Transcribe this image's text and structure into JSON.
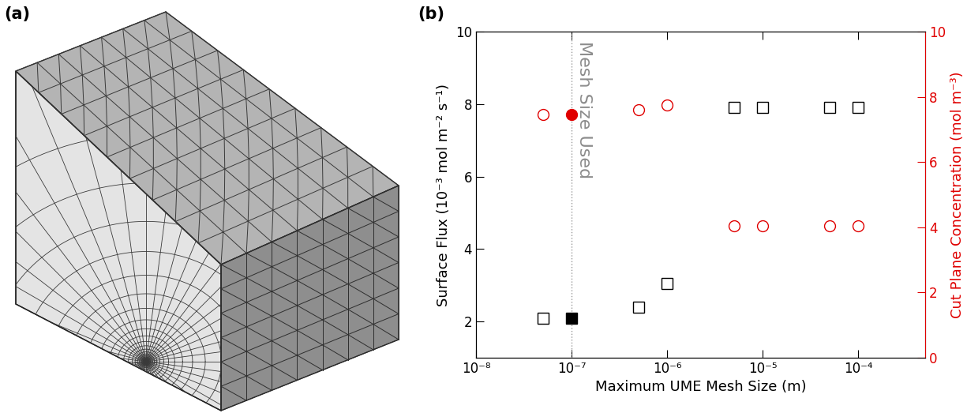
{
  "figure": {
    "panel_labels": [
      "(a)",
      "(b)"
    ]
  },
  "chart_data": {
    "type": "scatter",
    "x_label": "Maximum UME Mesh Size (m)",
    "y_label": "Surface Flux (10⁻³ mol m⁻² s⁻¹)",
    "y2_label": "Cut Plane Concentration (mol m⁻³)",
    "log": "x",
    "x": [
      5e-08,
      1e-07,
      5e-07,
      1e-06,
      5e-06,
      1e-05,
      5e-05,
      0.0001
    ],
    "series": [
      {
        "name": "Surface Flux",
        "color": "#000000",
        "marker": "square",
        "values": [
          2.1,
          2.1,
          2.4,
          3.05,
          7.9,
          7.9,
          7.9,
          7.9
        ]
      },
      {
        "name": "Cut Plane Concentration",
        "color": "#e00000",
        "marker": "circle",
        "axis": "y2",
        "values": [
          7.45,
          7.45,
          7.6,
          7.75,
          4.05,
          4.05,
          4.05,
          4.05
        ]
      }
    ],
    "xlim": [
      1e-08,
      0.0005
    ],
    "xticks": [
      {
        "value": 1e-08,
        "label": "10⁻⁸"
      },
      {
        "value": 1e-07,
        "label": "10⁻⁷"
      },
      {
        "value": 1e-06,
        "label": "10⁻⁶"
      },
      {
        "value": 1e-05,
        "label": "10⁻⁵"
      },
      {
        "value": 0.0001,
        "label": "10⁻⁴"
      }
    ],
    "ylim": [
      1,
      10
    ],
    "yticks": [
      2,
      4,
      6,
      8,
      10
    ],
    "y2lim": [
      0,
      10
    ],
    "y2ticks": [
      0,
      2,
      4,
      6,
      8,
      10
    ],
    "annotations": [
      {
        "text": "Mesh Size Used",
        "x": 1e-07
      }
    ]
  }
}
